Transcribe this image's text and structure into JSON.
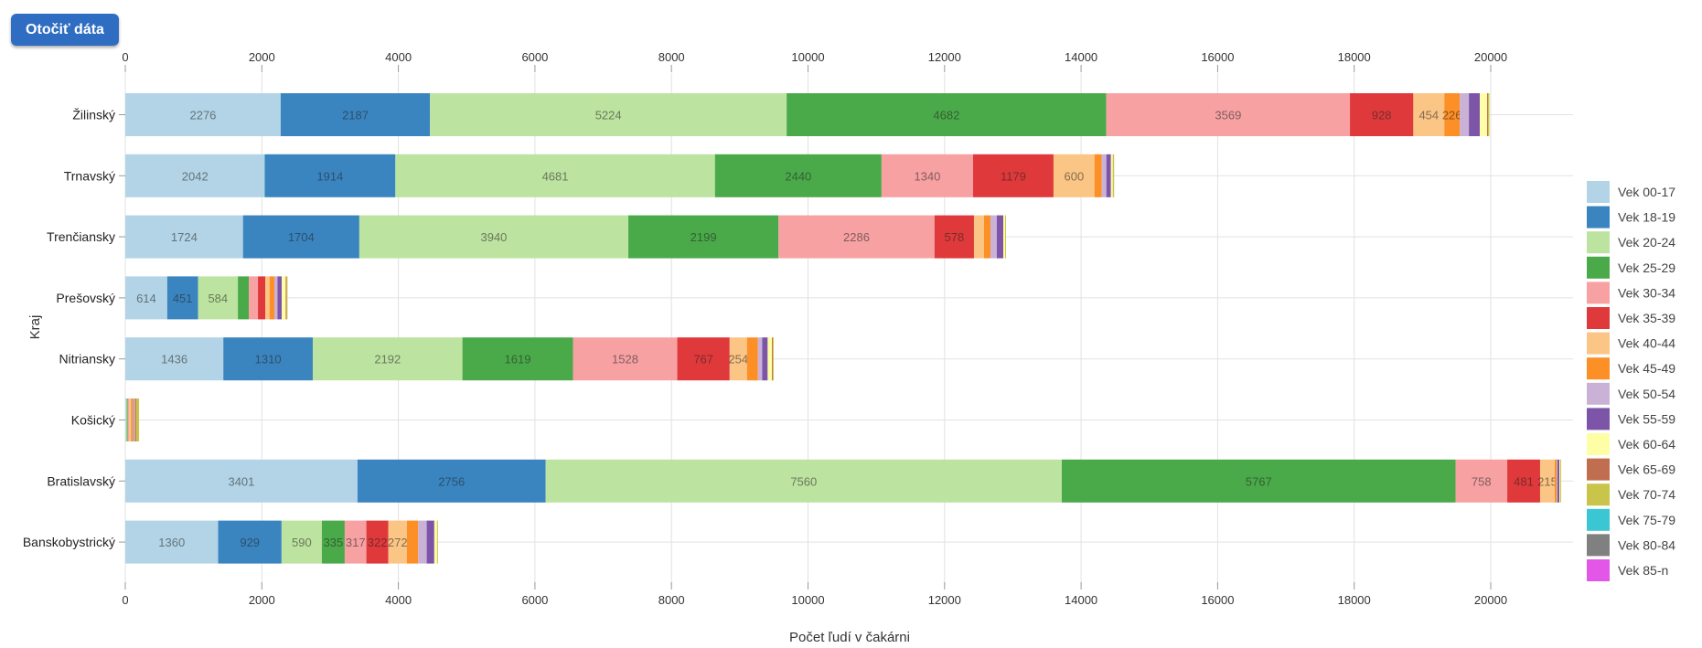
{
  "toolbar": {
    "rotate_label": "Otočiť dáta"
  },
  "chart_data": {
    "type": "bar",
    "orientation": "horizontal",
    "stacked": true,
    "title": "",
    "xlabel": "Počet ľudí v čakárni",
    "ylabel": "Kraj",
    "xlim": [
      0,
      21300
    ],
    "xticks": [
      0,
      2000,
      4000,
      6000,
      8000,
      10000,
      12000,
      14000,
      16000,
      18000,
      20000
    ],
    "grid": true,
    "legend_position": "right",
    "categories": [
      "Žilinský",
      "Trnavský",
      "Trenčiansky",
      "Prešovský",
      "Nitriansky",
      "Košický",
      "Bratislavský",
      "Banskobystrický"
    ],
    "series": [
      {
        "name": "Vek 00-17",
        "color": "#a6cee3",
        "values": [
          2276,
          2042,
          1724,
          614,
          1436,
          12,
          3401,
          1360
        ]
      },
      {
        "name": "Vek 18-19",
        "color": "#1f78b4",
        "values": [
          2187,
          1914,
          1704,
          451,
          1310,
          0,
          2756,
          929
        ]
      },
      {
        "name": "Vek 20-24",
        "color": "#b2df8a",
        "values": [
          5224,
          4681,
          3940,
          584,
          2192,
          10,
          7560,
          590
        ]
      },
      {
        "name": "Vek 25-29",
        "color": "#33a02c",
        "values": [
          4682,
          2440,
          2199,
          160,
          1619,
          14,
          5767,
          335
        ]
      },
      {
        "name": "Vek 30-34",
        "color": "#fb9a99",
        "values": [
          3569,
          1340,
          2286,
          134,
          1528,
          20,
          758,
          317
        ]
      },
      {
        "name": "Vek 35-39",
        "color": "#e31a1c",
        "values": [
          928,
          1179,
          578,
          107,
          767,
          0,
          481,
          322
        ]
      },
      {
        "name": "Vek 40-44",
        "color": "#fdbf6f",
        "values": [
          454,
          600,
          147,
          63,
          254,
          28,
          215,
          272
        ]
      },
      {
        "name": "Vek 45-49",
        "color": "#ff7f00",
        "values": [
          226,
          107,
          94,
          71,
          160,
          28,
          27,
          165
        ]
      },
      {
        "name": "Vek 50-54",
        "color": "#cab2d6",
        "values": [
          134,
          67,
          94,
          45,
          63,
          10,
          13,
          125
        ]
      },
      {
        "name": "Vek 55-59",
        "color": "#6a3d9a",
        "values": [
          160,
          67,
          94,
          63,
          80,
          10,
          27,
          111
        ]
      },
      {
        "name": "Vek 60-64",
        "color": "#ffff99",
        "values": [
          107,
          27,
          27,
          58,
          63,
          10,
          13,
          40
        ]
      },
      {
        "name": "Vek 65-69",
        "color": "#b15928",
        "values": [
          13,
          0,
          0,
          13,
          13,
          20,
          0,
          0
        ]
      },
      {
        "name": "Vek 70-74",
        "color": "#c5c73a",
        "values": [
          20,
          20,
          13,
          13,
          13,
          40,
          13,
          13
        ]
      },
      {
        "name": "Vek 75-79",
        "color": "#17becf",
        "values": [
          0,
          0,
          0,
          0,
          0,
          0,
          0,
          0
        ]
      },
      {
        "name": "Vek 80-84",
        "color": "#7f7f7f",
        "values": [
          0,
          0,
          0,
          0,
          0,
          0,
          0,
          0
        ]
      },
      {
        "name": "Vek 85-n",
        "color": "#e377c2",
        "values": [
          0,
          0,
          0,
          0,
          0,
          0,
          0,
          0
        ]
      }
    ],
    "legend_colors": [
      "#b2d4e6",
      "#3a85c0",
      "#bde3a0",
      "#4aaa49",
      "#f7a1a3",
      "#e0393b",
      "#fbc585",
      "#fc8f25",
      "#cab2d6",
      "#7d55a8",
      "#fefea6",
      "#c06e4f",
      "#c9c44a",
      "#3bc6d4",
      "#808080",
      "#e257e8"
    ],
    "data_labels": {
      "Žilinský": [
        2276,
        2187,
        5224,
        4682,
        3569,
        928,
        454,
        226
      ],
      "Trnavský": [
        2042,
        1914,
        4681,
        2440,
        1340,
        1179,
        600
      ],
      "Trenčiansky": [
        1724,
        1704,
        3940,
        2199,
        2286,
        578
      ],
      "Prešovský": [
        614,
        451,
        584
      ],
      "Nitriansky": [
        1436,
        1310,
        2192,
        1619,
        1528,
        767,
        254
      ],
      "Košický": [],
      "Bratislavský": [
        3401,
        2756,
        7560,
        5767,
        758,
        481,
        215
      ],
      "Banskobystrický": [
        1360,
        929,
        590,
        335,
        317,
        322,
        272
      ]
    }
  }
}
